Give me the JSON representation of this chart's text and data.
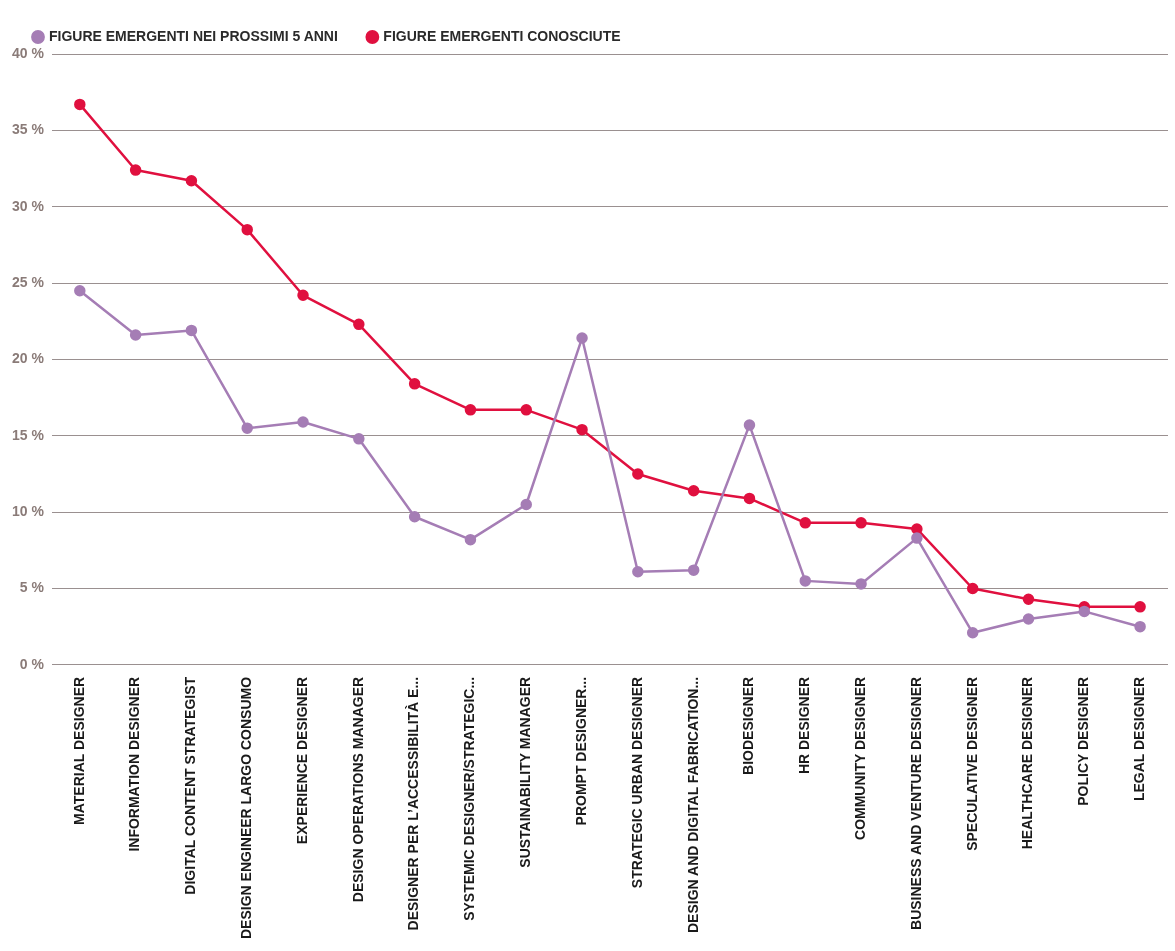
{
  "chart_data": {
    "type": "line",
    "legend": "top left",
    "grid": "y",
    "marker": "circle",
    "line_style": "solid",
    "categories": [
      "MATERIAL DESIGNER",
      "INFORMATION DESIGNER",
      "DIGITAL CONTENT STRATEGIST",
      "DESIGN ENGINEER LARGO CONSUMO",
      "EXPERIENCE DESIGNER",
      "DESIGN OPERATIONS MANAGER",
      "DESIGNER PER L’ACCESSIBILITÀ E...",
      "SYSTEMIC DESIGNER/STRATEGIC...",
      "SUSTAINABILITY MANAGER",
      "PROMPT DESIGNER...",
      "STRATEGIC URBAN DESIGNER",
      "DESIGN AND DIGITAL FABRICATION...",
      "BIODESIGNER",
      "HR DESIGNER",
      "COMMUNITY DESIGNER",
      "BUSINESS AND VENTURE DESIGNER",
      "SPECULATIVE DESIGNER",
      "HEALTHCARE DESIGNER",
      "POLICY DESIGNER",
      "LEGAL DESIGNER"
    ],
    "series": [
      {
        "name": "FIGURE EMERGENTI NEI PROSSIMI 5 ANNI",
        "color": "#a57db5",
        "values": [
          24.5,
          21.6,
          21.9,
          15.5,
          15.9,
          14.8,
          9.7,
          8.2,
          10.5,
          21.4,
          6.1,
          6.2,
          15.7,
          5.5,
          5.3,
          8.3,
          2.1,
          3.0,
          3.5,
          2.5
        ]
      },
      {
        "name": "FIGURE EMERGENTI CONOSCIUTE",
        "color": "#e0103f",
        "values": [
          36.7,
          32.4,
          31.7,
          28.5,
          24.2,
          22.3,
          18.4,
          16.7,
          16.7,
          15.4,
          12.5,
          11.4,
          10.9,
          9.3,
          9.3,
          8.9,
          5.0,
          4.3,
          3.8,
          3.8
        ]
      }
    ],
    "ylim": [
      0,
      40
    ],
    "yticks": [
      {
        "value": 0,
        "label": "0 %"
      },
      {
        "value": 5,
        "label": "5 %"
      },
      {
        "value": 10,
        "label": "10 %"
      },
      {
        "value": 15,
        "label": "15 %"
      },
      {
        "value": 20,
        "label": "20 %"
      },
      {
        "value": 25,
        "label": "25 %"
      },
      {
        "value": 30,
        "label": "30 %"
      },
      {
        "value": 35,
        "label": "35 %"
      },
      {
        "value": 40,
        "label": "40 %"
      }
    ]
  }
}
